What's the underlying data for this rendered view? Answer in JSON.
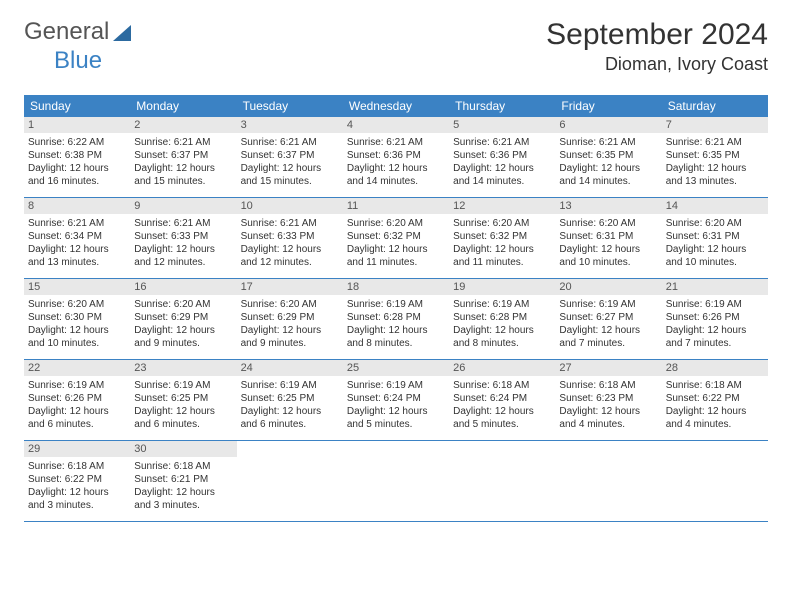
{
  "logo": {
    "text_general": "General",
    "text_blue": "Blue"
  },
  "header": {
    "month_title": "September 2024",
    "location": "Dioman, Ivory Coast"
  },
  "weekday_bg": "#3b82c4",
  "weekday_fg": "#ffffff",
  "daynum_bg": "#e8e8e8",
  "week_border": "#3b82c4",
  "weekdays": [
    "Sunday",
    "Monday",
    "Tuesday",
    "Wednesday",
    "Thursday",
    "Friday",
    "Saturday"
  ],
  "days": [
    {
      "n": "1",
      "sr": "Sunrise: 6:22 AM",
      "ss": "Sunset: 6:38 PM",
      "d1": "Daylight: 12 hours",
      "d2": "and 16 minutes."
    },
    {
      "n": "2",
      "sr": "Sunrise: 6:21 AM",
      "ss": "Sunset: 6:37 PM",
      "d1": "Daylight: 12 hours",
      "d2": "and 15 minutes."
    },
    {
      "n": "3",
      "sr": "Sunrise: 6:21 AM",
      "ss": "Sunset: 6:37 PM",
      "d1": "Daylight: 12 hours",
      "d2": "and 15 minutes."
    },
    {
      "n": "4",
      "sr": "Sunrise: 6:21 AM",
      "ss": "Sunset: 6:36 PM",
      "d1": "Daylight: 12 hours",
      "d2": "and 14 minutes."
    },
    {
      "n": "5",
      "sr": "Sunrise: 6:21 AM",
      "ss": "Sunset: 6:36 PM",
      "d1": "Daylight: 12 hours",
      "d2": "and 14 minutes."
    },
    {
      "n": "6",
      "sr": "Sunrise: 6:21 AM",
      "ss": "Sunset: 6:35 PM",
      "d1": "Daylight: 12 hours",
      "d2": "and 14 minutes."
    },
    {
      "n": "7",
      "sr": "Sunrise: 6:21 AM",
      "ss": "Sunset: 6:35 PM",
      "d1": "Daylight: 12 hours",
      "d2": "and 13 minutes."
    },
    {
      "n": "8",
      "sr": "Sunrise: 6:21 AM",
      "ss": "Sunset: 6:34 PM",
      "d1": "Daylight: 12 hours",
      "d2": "and 13 minutes."
    },
    {
      "n": "9",
      "sr": "Sunrise: 6:21 AM",
      "ss": "Sunset: 6:33 PM",
      "d1": "Daylight: 12 hours",
      "d2": "and 12 minutes."
    },
    {
      "n": "10",
      "sr": "Sunrise: 6:21 AM",
      "ss": "Sunset: 6:33 PM",
      "d1": "Daylight: 12 hours",
      "d2": "and 12 minutes."
    },
    {
      "n": "11",
      "sr": "Sunrise: 6:20 AM",
      "ss": "Sunset: 6:32 PM",
      "d1": "Daylight: 12 hours",
      "d2": "and 11 minutes."
    },
    {
      "n": "12",
      "sr": "Sunrise: 6:20 AM",
      "ss": "Sunset: 6:32 PM",
      "d1": "Daylight: 12 hours",
      "d2": "and 11 minutes."
    },
    {
      "n": "13",
      "sr": "Sunrise: 6:20 AM",
      "ss": "Sunset: 6:31 PM",
      "d1": "Daylight: 12 hours",
      "d2": "and 10 minutes."
    },
    {
      "n": "14",
      "sr": "Sunrise: 6:20 AM",
      "ss": "Sunset: 6:31 PM",
      "d1": "Daylight: 12 hours",
      "d2": "and 10 minutes."
    },
    {
      "n": "15",
      "sr": "Sunrise: 6:20 AM",
      "ss": "Sunset: 6:30 PM",
      "d1": "Daylight: 12 hours",
      "d2": "and 10 minutes."
    },
    {
      "n": "16",
      "sr": "Sunrise: 6:20 AM",
      "ss": "Sunset: 6:29 PM",
      "d1": "Daylight: 12 hours",
      "d2": "and 9 minutes."
    },
    {
      "n": "17",
      "sr": "Sunrise: 6:20 AM",
      "ss": "Sunset: 6:29 PM",
      "d1": "Daylight: 12 hours",
      "d2": "and 9 minutes."
    },
    {
      "n": "18",
      "sr": "Sunrise: 6:19 AM",
      "ss": "Sunset: 6:28 PM",
      "d1": "Daylight: 12 hours",
      "d2": "and 8 minutes."
    },
    {
      "n": "19",
      "sr": "Sunrise: 6:19 AM",
      "ss": "Sunset: 6:28 PM",
      "d1": "Daylight: 12 hours",
      "d2": "and 8 minutes."
    },
    {
      "n": "20",
      "sr": "Sunrise: 6:19 AM",
      "ss": "Sunset: 6:27 PM",
      "d1": "Daylight: 12 hours",
      "d2": "and 7 minutes."
    },
    {
      "n": "21",
      "sr": "Sunrise: 6:19 AM",
      "ss": "Sunset: 6:26 PM",
      "d1": "Daylight: 12 hours",
      "d2": "and 7 minutes."
    },
    {
      "n": "22",
      "sr": "Sunrise: 6:19 AM",
      "ss": "Sunset: 6:26 PM",
      "d1": "Daylight: 12 hours",
      "d2": "and 6 minutes."
    },
    {
      "n": "23",
      "sr": "Sunrise: 6:19 AM",
      "ss": "Sunset: 6:25 PM",
      "d1": "Daylight: 12 hours",
      "d2": "and 6 minutes."
    },
    {
      "n": "24",
      "sr": "Sunrise: 6:19 AM",
      "ss": "Sunset: 6:25 PM",
      "d1": "Daylight: 12 hours",
      "d2": "and 6 minutes."
    },
    {
      "n": "25",
      "sr": "Sunrise: 6:19 AM",
      "ss": "Sunset: 6:24 PM",
      "d1": "Daylight: 12 hours",
      "d2": "and 5 minutes."
    },
    {
      "n": "26",
      "sr": "Sunrise: 6:18 AM",
      "ss": "Sunset: 6:24 PM",
      "d1": "Daylight: 12 hours",
      "d2": "and 5 minutes."
    },
    {
      "n": "27",
      "sr": "Sunrise: 6:18 AM",
      "ss": "Sunset: 6:23 PM",
      "d1": "Daylight: 12 hours",
      "d2": "and 4 minutes."
    },
    {
      "n": "28",
      "sr": "Sunrise: 6:18 AM",
      "ss": "Sunset: 6:22 PM",
      "d1": "Daylight: 12 hours",
      "d2": "and 4 minutes."
    },
    {
      "n": "29",
      "sr": "Sunrise: 6:18 AM",
      "ss": "Sunset: 6:22 PM",
      "d1": "Daylight: 12 hours",
      "d2": "and 3 minutes."
    },
    {
      "n": "30",
      "sr": "Sunrise: 6:18 AM",
      "ss": "Sunset: 6:21 PM",
      "d1": "Daylight: 12 hours",
      "d2": "and 3 minutes."
    }
  ],
  "trailing_empty": 5
}
